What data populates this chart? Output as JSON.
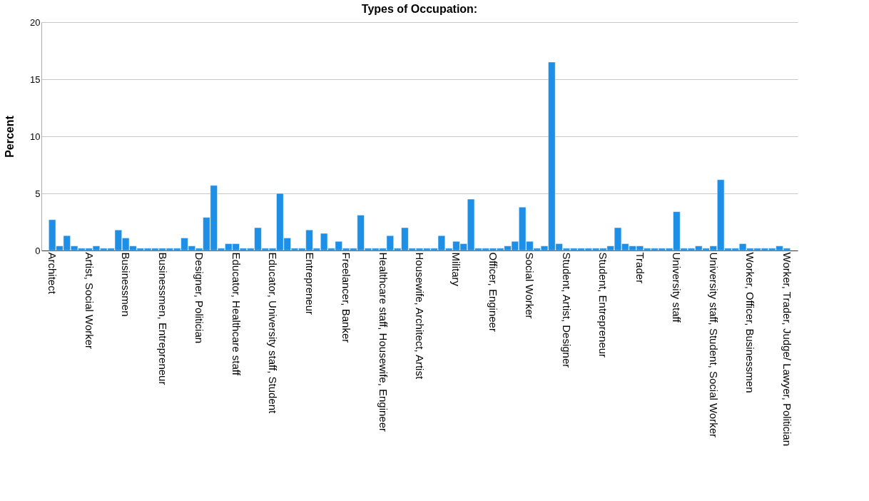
{
  "chart_data": {
    "type": "bar",
    "title": "Types of Occupation:",
    "ylabel": "Percent",
    "categories": [
      "Architect",
      null,
      null,
      null,
      null,
      "Artist, Social Worker",
      null,
      null,
      null,
      null,
      "Businessmen",
      null,
      null,
      null,
      null,
      "Businessmen, Entrepreneur",
      null,
      null,
      null,
      null,
      "Designer, Politician",
      null,
      null,
      null,
      null,
      "Educator, Healthcare staff",
      null,
      null,
      null,
      null,
      "Educator, University staff, Student",
      null,
      null,
      null,
      null,
      "Entrepreneur",
      null,
      null,
      null,
      null,
      "Freelancer, Banker",
      null,
      null,
      null,
      null,
      "Healthcare staff, Housewife, Engineer",
      null,
      null,
      null,
      null,
      "Housewife, Architect, Artist",
      null,
      null,
      null,
      null,
      "Military",
      null,
      null,
      null,
      null,
      "Officer, Engineer",
      null,
      null,
      null,
      null,
      "Social Worker",
      null,
      null,
      null,
      null,
      "Student, Artist, Designer",
      null,
      null,
      null,
      null,
      "Student, Entrepreneur",
      null,
      null,
      null,
      null,
      "Trader",
      null,
      null,
      null,
      null,
      "University staff",
      null,
      null,
      null,
      null,
      "University staff, Student, Social Worker",
      null,
      null,
      null,
      null,
      "Worker, Officer, Businessmen",
      null,
      null,
      null,
      null,
      "Worker, Trader, Judge/ Lawyer, Politician"
    ],
    "values": [
      2.7,
      0.4,
      1.3,
      0.4,
      0.2,
      0.2,
      0.4,
      0.2,
      0.2,
      1.8,
      1.1,
      0.4,
      0.2,
      0.2,
      0.2,
      0.2,
      0.2,
      0.2,
      1.1,
      0.4,
      0.2,
      2.9,
      5.7,
      0.2,
      0.6,
      0.6,
      0.2,
      0.2,
      2.0,
      0.2,
      0.2,
      5.0,
      1.1,
      0.2,
      0.2,
      1.8,
      0.2,
      1.5,
      0.2,
      0.8,
      0.2,
      0.2,
      3.1,
      0.2,
      0.2,
      0.2,
      1.3,
      0.2,
      2.0,
      0.2,
      0.2,
      0.2,
      0.2,
      1.3,
      0.2,
      0.8,
      0.6,
      4.5,
      0.2,
      0.2,
      0.2,
      0.2,
      0.4,
      0.8,
      3.8,
      0.8,
      0.2,
      0.4,
      16.5,
      0.6,
      0.2,
      0.2,
      0.2,
      0.2,
      0.2,
      0.2,
      0.4,
      2.0,
      0.6,
      0.4,
      0.4,
      0.2,
      0.2,
      0.2,
      0.2,
      3.4,
      0.2,
      0.2,
      0.4,
      0.2,
      0.4,
      6.2,
      0.2,
      0.2,
      0.6,
      0.2,
      0.2,
      0.2,
      0.2,
      0.4,
      0.2
    ],
    "color": "#1e8fe6",
    "ylim": [
      0,
      20
    ],
    "yticks": [
      0,
      5,
      10,
      15,
      20
    ],
    "grid": "y"
  }
}
